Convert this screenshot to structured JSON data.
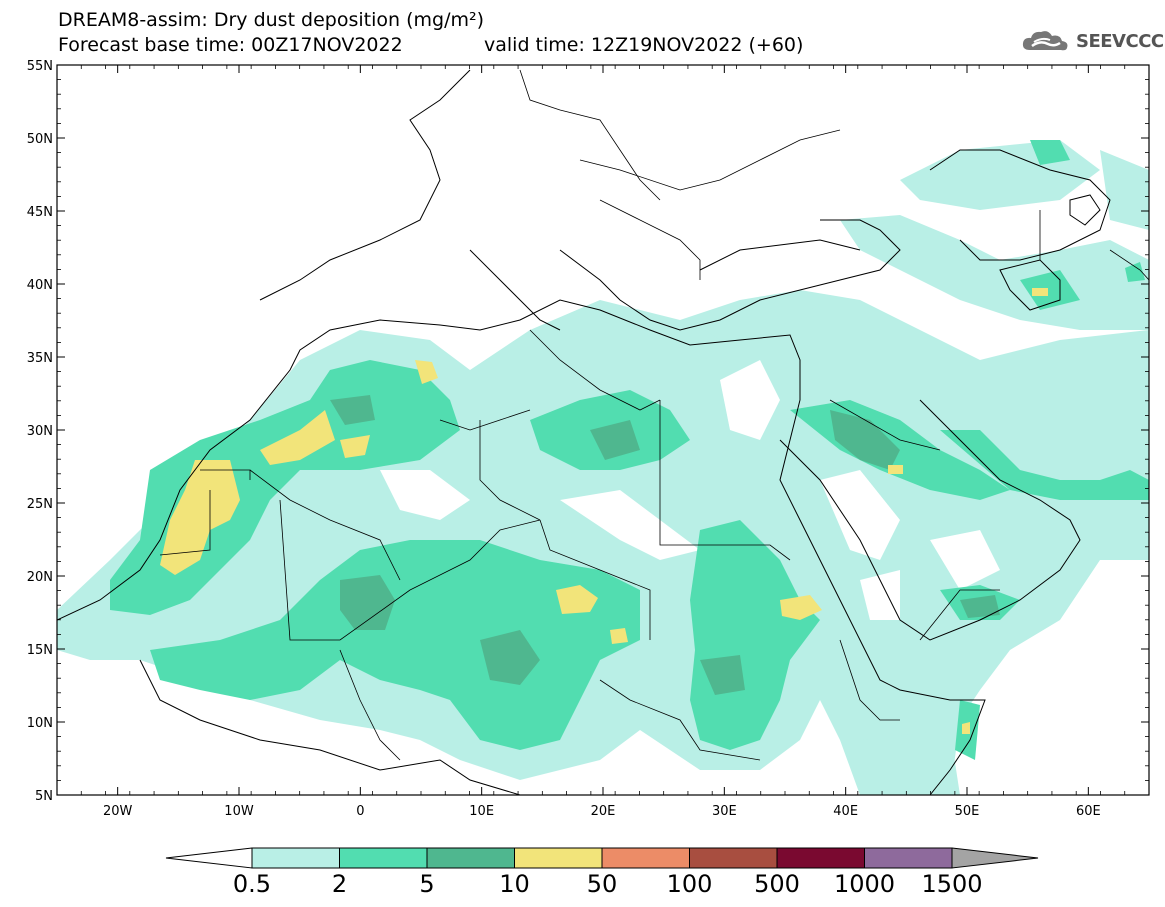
{
  "header": {
    "title_line1": "DREAM8-assim: Dry dust deposition (mg/m²)",
    "title_line2": "Forecast base time: 00Z17NOV2022",
    "valid_time": "valid time: 12Z19NOV2022 (+60)"
  },
  "logo": {
    "text": "SEEVCCC",
    "icon": "cloud-icon"
  },
  "map": {
    "lon_range": [
      -25,
      65
    ],
    "lat_range": [
      5,
      55
    ],
    "lat_labels": [
      "55N",
      "50N",
      "45N",
      "40N",
      "35N",
      "30N",
      "25N",
      "20N",
      "15N",
      "10N",
      "5N"
    ],
    "lon_labels": [
      "20W",
      "10W",
      "0",
      "10E",
      "20E",
      "30E",
      "40E",
      "50E",
      "60E"
    ]
  },
  "legend": {
    "labels": [
      "0.5",
      "2",
      "5",
      "10",
      "50",
      "100",
      "500",
      "1000",
      "1500"
    ],
    "colors": [
      "#b9efe6",
      "#52ddb0",
      "#4fb78f",
      "#f2e47a",
      "#ec8c67",
      "#a84e40",
      "#7a0930",
      "#8e6a9c",
      "#a4a4a4"
    ]
  }
}
